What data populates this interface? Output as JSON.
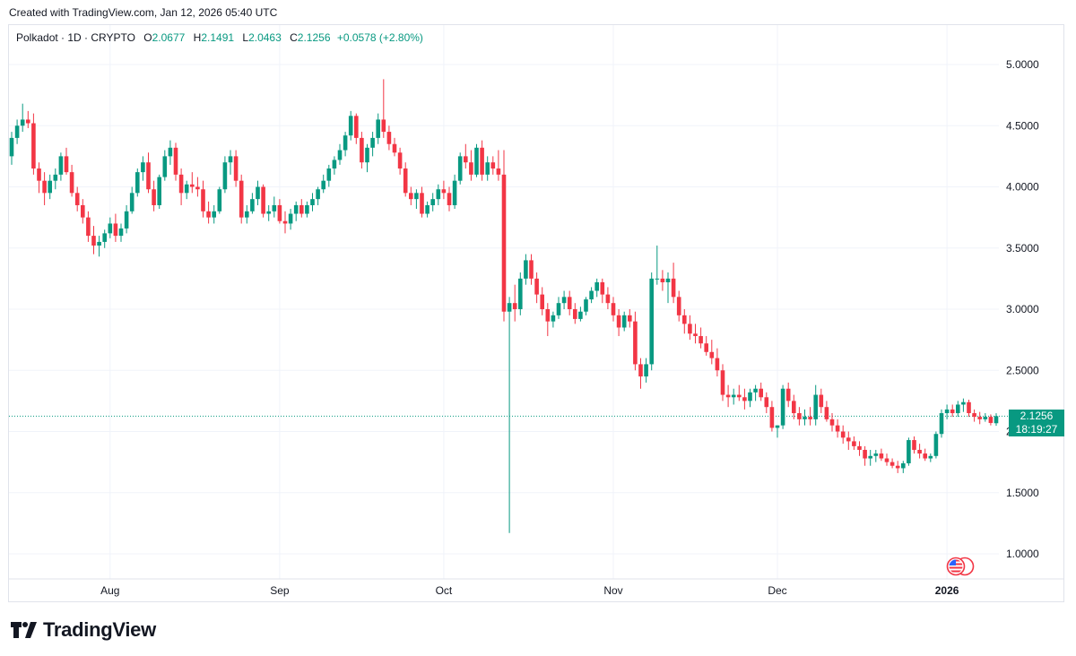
{
  "header": {
    "created": "Created with TradingView.com, Jan 12, 2026 05:40 UTC"
  },
  "legend": {
    "symbol": "Polkadot · 1D · CRYPTO",
    "open_label": "O",
    "open": "2.0677",
    "high_label": "H",
    "high": "2.1491",
    "low_label": "L",
    "low": "2.0463",
    "close_label": "C",
    "close": "2.1256",
    "change": "+0.0578 (+2.80%)"
  },
  "price_tag": {
    "price": "2.1256",
    "countdown": "18:19:27"
  },
  "brand": {
    "name": "TradingView"
  },
  "colors": {
    "up": "#089981",
    "down": "#f23645",
    "grid": "#f0f3fa",
    "last_line": "#089981"
  },
  "chart_data": {
    "type": "candlestick",
    "title": "Polkadot · 1D · CRYPTO",
    "ylim": [
      0.8,
      5.28
    ],
    "y_ticks": [
      "5.0000",
      "4.5000",
      "4.0000",
      "3.5000",
      "3.0000",
      "2.5000",
      "2.0000",
      "1.5000",
      "1.0000"
    ],
    "x_ticks": [
      {
        "label": "Aug",
        "date": "2025-08-01"
      },
      {
        "label": "Sep",
        "date": "2025-09-01"
      },
      {
        "label": "Oct",
        "date": "2025-10-01"
      },
      {
        "label": "Nov",
        "date": "2025-11-01"
      },
      {
        "label": "Dec",
        "date": "2025-12-01"
      },
      {
        "label": "2026",
        "date": "2026-01-01"
      }
    ],
    "first_date": "2025-07-14",
    "last_price": 2.1256,
    "ohlc": [
      [
        4.25,
        4.45,
        4.18,
        4.4
      ],
      [
        4.4,
        4.55,
        4.35,
        4.5
      ],
      [
        4.5,
        4.68,
        4.45,
        4.55
      ],
      [
        4.55,
        4.62,
        4.48,
        4.52
      ],
      [
        4.52,
        4.6,
        4.1,
        4.15
      ],
      [
        4.15,
        4.2,
        3.95,
        4.05
      ],
      [
        4.05,
        4.12,
        3.85,
        3.95
      ],
      [
        3.95,
        4.1,
        3.9,
        4.05
      ],
      [
        4.05,
        4.15,
        3.98,
        4.1
      ],
      [
        4.1,
        4.28,
        4.05,
        4.25
      ],
      [
        4.25,
        4.32,
        4.1,
        4.12
      ],
      [
        4.12,
        4.18,
        3.92,
        3.95
      ],
      [
        3.95,
        4.0,
        3.8,
        3.85
      ],
      [
        3.85,
        3.9,
        3.7,
        3.75
      ],
      [
        3.75,
        3.8,
        3.55,
        3.6
      ],
      [
        3.6,
        3.68,
        3.45,
        3.52
      ],
      [
        3.52,
        3.6,
        3.43,
        3.55
      ],
      [
        3.55,
        3.65,
        3.5,
        3.62
      ],
      [
        3.62,
        3.75,
        3.58,
        3.7
      ],
      [
        3.7,
        3.78,
        3.55,
        3.6
      ],
      [
        3.6,
        3.7,
        3.55,
        3.66
      ],
      [
        3.66,
        3.85,
        3.62,
        3.8
      ],
      [
        3.8,
        4.0,
        3.78,
        3.95
      ],
      [
        3.95,
        4.15,
        3.92,
        4.12
      ],
      [
        4.12,
        4.25,
        4.05,
        4.2
      ],
      [
        4.2,
        4.28,
        3.95,
        3.98
      ],
      [
        3.98,
        4.05,
        3.8,
        3.85
      ],
      [
        3.85,
        4.1,
        3.82,
        4.08
      ],
      [
        4.08,
        4.3,
        4.05,
        4.25
      ],
      [
        4.25,
        4.38,
        4.18,
        4.32
      ],
      [
        4.32,
        4.36,
        4.05,
        4.1
      ],
      [
        4.1,
        4.15,
        3.85,
        3.95
      ],
      [
        3.95,
        4.05,
        3.9,
        4.02
      ],
      [
        4.02,
        4.12,
        3.95,
        4.0
      ],
      [
        4.0,
        4.08,
        3.92,
        3.98
      ],
      [
        3.98,
        4.05,
        3.75,
        3.8
      ],
      [
        3.8,
        3.88,
        3.7,
        3.75
      ],
      [
        3.75,
        3.85,
        3.7,
        3.8
      ],
      [
        3.8,
        4.0,
        3.78,
        3.98
      ],
      [
        3.98,
        4.25,
        3.95,
        4.2
      ],
      [
        4.2,
        4.3,
        4.1,
        4.25
      ],
      [
        4.25,
        4.3,
        4.0,
        4.05
      ],
      [
        4.05,
        4.1,
        3.7,
        3.75
      ],
      [
        3.75,
        3.85,
        3.7,
        3.8
      ],
      [
        3.8,
        3.95,
        3.78,
        3.9
      ],
      [
        3.9,
        4.05,
        3.85,
        4.0
      ],
      [
        4.0,
        4.02,
        3.75,
        3.78
      ],
      [
        3.78,
        3.85,
        3.72,
        3.8
      ],
      [
        3.8,
        3.92,
        3.75,
        3.85
      ],
      [
        3.85,
        3.9,
        3.7,
        3.72
      ],
      [
        3.72,
        3.8,
        3.62,
        3.7
      ],
      [
        3.7,
        3.82,
        3.65,
        3.78
      ],
      [
        3.78,
        3.88,
        3.72,
        3.85
      ],
      [
        3.85,
        3.9,
        3.75,
        3.78
      ],
      [
        3.78,
        3.88,
        3.75,
        3.85
      ],
      [
        3.85,
        3.95,
        3.8,
        3.9
      ],
      [
        3.9,
        4.0,
        3.85,
        3.98
      ],
      [
        3.98,
        4.1,
        3.95,
        4.05
      ],
      [
        4.05,
        4.18,
        4.0,
        4.15
      ],
      [
        4.15,
        4.25,
        4.1,
        4.22
      ],
      [
        4.22,
        4.35,
        4.18,
        4.3
      ],
      [
        4.3,
        4.45,
        4.25,
        4.42
      ],
      [
        4.42,
        4.62,
        4.38,
        4.58
      ],
      [
        4.58,
        4.6,
        4.35,
        4.4
      ],
      [
        4.4,
        4.45,
        4.15,
        4.2
      ],
      [
        4.2,
        4.35,
        4.12,
        4.32
      ],
      [
        4.32,
        4.45,
        4.25,
        4.4
      ],
      [
        4.4,
        4.6,
        4.35,
        4.55
      ],
      [
        4.55,
        4.88,
        4.4,
        4.45
      ],
      [
        4.45,
        4.5,
        4.3,
        4.35
      ],
      [
        4.35,
        4.4,
        4.25,
        4.28
      ],
      [
        4.28,
        4.32,
        4.1,
        4.15
      ],
      [
        4.15,
        4.2,
        3.92,
        3.95
      ],
      [
        3.95,
        4.0,
        3.85,
        3.9
      ],
      [
        3.9,
        3.98,
        3.82,
        3.95
      ],
      [
        3.95,
        4.0,
        3.75,
        3.78
      ],
      [
        3.78,
        3.88,
        3.75,
        3.85
      ],
      [
        3.85,
        3.95,
        3.8,
        3.9
      ],
      [
        3.9,
        4.02,
        3.85,
        3.98
      ],
      [
        3.98,
        4.05,
        3.9,
        3.95
      ],
      [
        3.95,
        4.0,
        3.8,
        3.85
      ],
      [
        3.85,
        4.1,
        3.82,
        4.05
      ],
      [
        4.05,
        4.28,
        4.02,
        4.25
      ],
      [
        4.25,
        4.35,
        4.15,
        4.2
      ],
      [
        4.2,
        4.3,
        4.05,
        4.1
      ],
      [
        4.1,
        4.35,
        4.08,
        4.32
      ],
      [
        4.32,
        4.38,
        4.05,
        4.1
      ],
      [
        4.1,
        4.25,
        4.05,
        4.2
      ],
      [
        4.2,
        4.25,
        4.1,
        4.15
      ],
      [
        4.15,
        4.3,
        4.05,
        4.1
      ],
      [
        4.1,
        4.3,
        2.9,
        2.98
      ],
      [
        2.98,
        3.1,
        1.17,
        3.05
      ],
      [
        3.05,
        3.2,
        2.9,
        3.0
      ],
      [
        3.0,
        3.3,
        2.95,
        3.25
      ],
      [
        3.25,
        3.45,
        3.2,
        3.4
      ],
      [
        3.4,
        3.45,
        3.2,
        3.25
      ],
      [
        3.25,
        3.3,
        3.05,
        3.12
      ],
      [
        3.12,
        3.18,
        2.95,
        3.0
      ],
      [
        3.0,
        3.05,
        2.78,
        2.9
      ],
      [
        2.9,
        2.98,
        2.85,
        2.95
      ],
      [
        2.95,
        3.1,
        2.92,
        3.05
      ],
      [
        3.05,
        3.15,
        3.0,
        3.1
      ],
      [
        3.1,
        3.15,
        2.95,
        3.0
      ],
      [
        3.0,
        3.05,
        2.88,
        2.92
      ],
      [
        2.92,
        3.02,
        2.9,
        2.98
      ],
      [
        2.98,
        3.1,
        2.95,
        3.08
      ],
      [
        3.08,
        3.18,
        3.05,
        3.15
      ],
      [
        3.15,
        3.25,
        3.1,
        3.22
      ],
      [
        3.22,
        3.25,
        3.05,
        3.12
      ],
      [
        3.12,
        3.18,
        3.0,
        3.05
      ],
      [
        3.05,
        3.1,
        2.9,
        2.95
      ],
      [
        2.95,
        3.0,
        2.78,
        2.85
      ],
      [
        2.85,
        2.98,
        2.82,
        2.95
      ],
      [
        2.95,
        3.0,
        2.85,
        2.9
      ],
      [
        2.9,
        2.98,
        2.5,
        2.55
      ],
      [
        2.55,
        2.6,
        2.35,
        2.45
      ],
      [
        2.45,
        2.6,
        2.4,
        2.55
      ],
      [
        2.55,
        3.3,
        2.5,
        3.25
      ],
      [
        3.25,
        3.52,
        3.2,
        3.25
      ],
      [
        3.25,
        3.32,
        3.15,
        3.22
      ],
      [
        3.22,
        3.3,
        3.05,
        3.25
      ],
      [
        3.25,
        3.38,
        3.05,
        3.1
      ],
      [
        3.1,
        3.15,
        2.9,
        2.95
      ],
      [
        2.95,
        3.0,
        2.8,
        2.88
      ],
      [
        2.88,
        2.95,
        2.75,
        2.8
      ],
      [
        2.8,
        2.88,
        2.72,
        2.78
      ],
      [
        2.78,
        2.85,
        2.68,
        2.72
      ],
      [
        2.72,
        2.78,
        2.62,
        2.65
      ],
      [
        2.65,
        2.75,
        2.55,
        2.6
      ],
      [
        2.6,
        2.68,
        2.45,
        2.5
      ],
      [
        2.5,
        2.55,
        2.25,
        2.3
      ],
      [
        2.3,
        2.38,
        2.2,
        2.28
      ],
      [
        2.28,
        2.35,
        2.22,
        2.3
      ],
      [
        2.3,
        2.38,
        2.25,
        2.28
      ],
      [
        2.28,
        2.35,
        2.18,
        2.25
      ],
      [
        2.25,
        2.35,
        2.2,
        2.32
      ],
      [
        2.32,
        2.38,
        2.25,
        2.35
      ],
      [
        2.35,
        2.4,
        2.25,
        2.28
      ],
      [
        2.28,
        2.32,
        2.15,
        2.2
      ],
      [
        2.2,
        2.25,
        2.0,
        2.03
      ],
      [
        2.03,
        2.05,
        1.95,
        2.05
      ],
      [
        2.05,
        2.38,
        2.02,
        2.35
      ],
      [
        2.35,
        2.4,
        2.2,
        2.25
      ],
      [
        2.25,
        2.3,
        2.1,
        2.15
      ],
      [
        2.15,
        2.2,
        2.05,
        2.1
      ],
      [
        2.1,
        2.18,
        2.05,
        2.12
      ],
      [
        2.12,
        2.2,
        2.05,
        2.1
      ],
      [
        2.1,
        2.38,
        2.05,
        2.3
      ],
      [
        2.3,
        2.35,
        2.15,
        2.2
      ],
      [
        2.2,
        2.25,
        2.08,
        2.1
      ],
      [
        2.1,
        2.15,
        2.0,
        2.05
      ],
      [
        2.05,
        2.1,
        1.95,
        2.0
      ],
      [
        2.0,
        2.05,
        1.9,
        1.95
      ],
      [
        1.95,
        2.0,
        1.85,
        1.92
      ],
      [
        1.92,
        1.96,
        1.85,
        1.88
      ],
      [
        1.88,
        1.92,
        1.8,
        1.85
      ],
      [
        1.85,
        1.88,
        1.72,
        1.78
      ],
      [
        1.78,
        1.85,
        1.72,
        1.8
      ],
      [
        1.8,
        1.85,
        1.75,
        1.82
      ],
      [
        1.82,
        1.86,
        1.76,
        1.78
      ],
      [
        1.78,
        1.82,
        1.72,
        1.75
      ],
      [
        1.75,
        1.78,
        1.7,
        1.72
      ],
      [
        1.72,
        1.76,
        1.66,
        1.7
      ],
      [
        1.7,
        1.76,
        1.66,
        1.74
      ],
      [
        1.74,
        1.95,
        1.72,
        1.93
      ],
      [
        1.93,
        1.96,
        1.82,
        1.85
      ],
      [
        1.85,
        1.9,
        1.78,
        1.82
      ],
      [
        1.82,
        1.86,
        1.76,
        1.78
      ],
      [
        1.78,
        1.82,
        1.75,
        1.8
      ],
      [
        1.8,
        2.0,
        1.78,
        1.98
      ],
      [
        1.98,
        2.18,
        1.95,
        2.15
      ],
      [
        2.15,
        2.22,
        2.1,
        2.18
      ],
      [
        2.18,
        2.22,
        2.12,
        2.15
      ],
      [
        2.15,
        2.25,
        2.12,
        2.22
      ],
      [
        2.22,
        2.27,
        2.16,
        2.24
      ],
      [
        2.24,
        2.26,
        2.12,
        2.15
      ],
      [
        2.15,
        2.18,
        2.08,
        2.12
      ],
      [
        2.12,
        2.16,
        2.06,
        2.1
      ],
      [
        2.1,
        2.15,
        2.08,
        2.12
      ],
      [
        2.12,
        2.14,
        2.05,
        2.07
      ],
      [
        2.0677,
        2.1491,
        2.0463,
        2.1256
      ]
    ]
  }
}
